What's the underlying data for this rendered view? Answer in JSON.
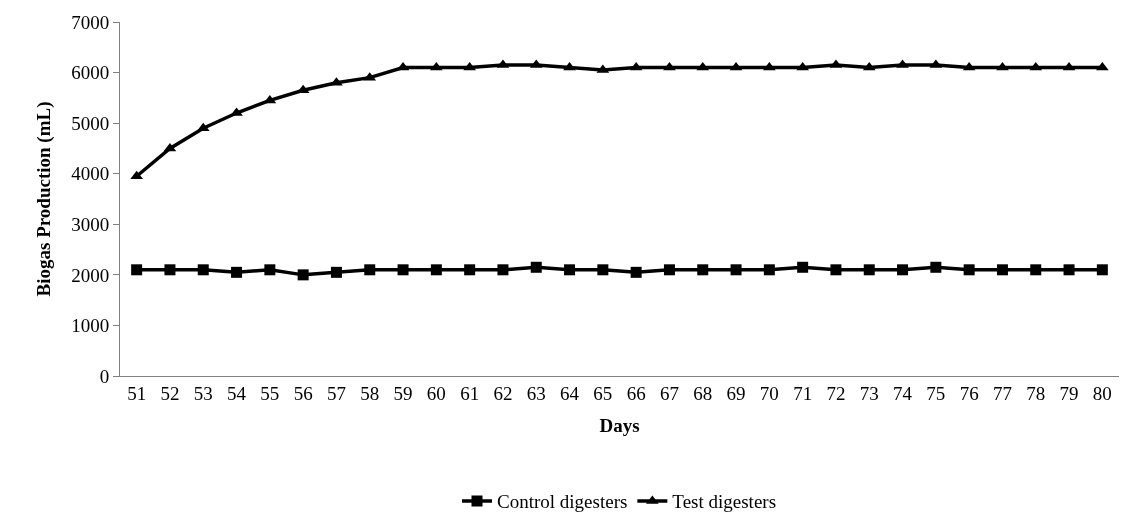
{
  "chart_data": {
    "type": "line",
    "xlabel": "Days",
    "ylabel": "Biogas Production (mL)",
    "categories": [
      "51",
      "52",
      "53",
      "54",
      "55",
      "56",
      "57",
      "58",
      "59",
      "60",
      "61",
      "62",
      "63",
      "64",
      "65",
      "66",
      "67",
      "68",
      "69",
      "70",
      "71",
      "72",
      "73",
      "74",
      "75",
      "76",
      "77",
      "78",
      "79",
      "80"
    ],
    "series": [
      {
        "name": "Control digesters",
        "color": "#000000",
        "marker": "square",
        "values": [
          2100,
          2100,
          2100,
          2050,
          2100,
          2000,
          2050,
          2100,
          2100,
          2100,
          2100,
          2100,
          2150,
          2100,
          2100,
          2050,
          2100,
          2100,
          2100,
          2100,
          2150,
          2100,
          2100,
          2100,
          2150,
          2100,
          2100,
          2100,
          2100,
          2100
        ]
      },
      {
        "name": "Test digesters",
        "color": "#000000",
        "marker": "triangle",
        "values": [
          3950,
          4500,
          4900,
          5200,
          5450,
          5650,
          5800,
          5900,
          6100,
          6100,
          6100,
          6150,
          6150,
          6100,
          6050,
          6100,
          6100,
          6100,
          6100,
          6100,
          6100,
          6150,
          6100,
          6150,
          6150,
          6100,
          6100,
          6100,
          6100,
          6100
        ]
      }
    ],
    "ylim": [
      0,
      7000
    ],
    "yticks": [
      0,
      1000,
      2000,
      3000,
      4000,
      5000,
      6000,
      7000
    ],
    "legend": "bottom",
    "line_style": "solid"
  }
}
